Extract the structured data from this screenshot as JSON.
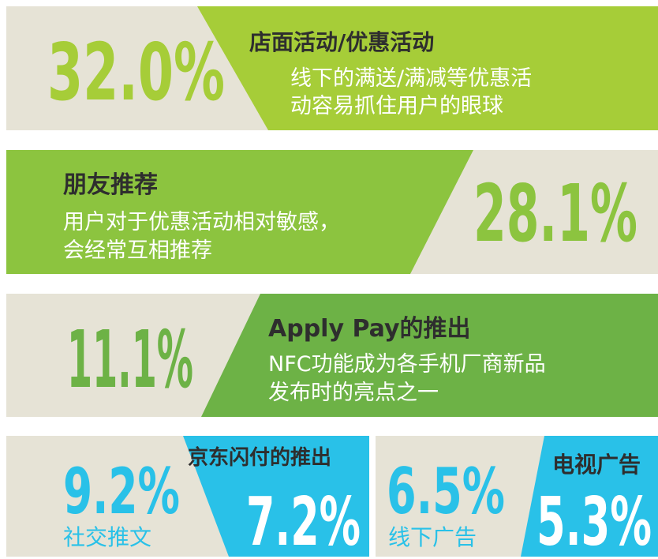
{
  "panels": [
    {
      "value": "32.0%",
      "title": "店面活动/优惠活动",
      "lines": [
        "线下的满送/满减等优惠活",
        "动容易抓住用户的眼球"
      ]
    },
    {
      "value": "28.1%",
      "title": "朋友推荐",
      "lines": [
        "用户对于优惠活动相对敏感，",
        "会经常互相推荐"
      ]
    },
    {
      "value": "11.1%",
      "title": "Apply Pay的推出",
      "lines": [
        "NFC功能成为各手机厂商新品",
        "发布时的亮点之一"
      ]
    }
  ],
  "bottom": [
    {
      "value": "9.2%",
      "label": "社交推文"
    },
    {
      "title": "京东闪付的推出",
      "value": "7.2%"
    },
    {
      "value": "6.5%",
      "label": "线下广告"
    },
    {
      "title": "电视广告",
      "value": "5.3%"
    }
  ]
}
